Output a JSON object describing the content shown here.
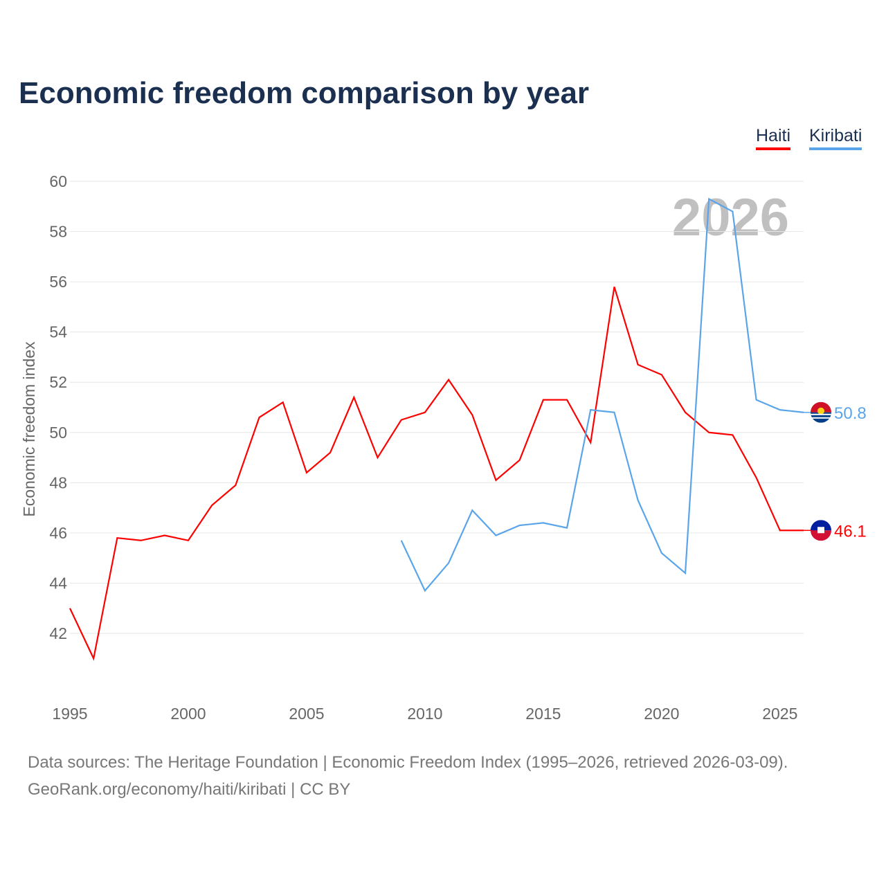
{
  "title": "Economic freedom comparison by year",
  "legend": [
    {
      "label": "Haiti",
      "color": "#ff0000"
    },
    {
      "label": "Kiribati",
      "color": "#5aa5ea"
    }
  ],
  "year_watermark": "2026",
  "footer": {
    "line1": "Data sources: The Heritage Foundation | Economic Freedom Index (1995–2026, retrieved 2026-03-09).",
    "line2": "GeoRank.org/economy/haiti/kiribati | CC BY"
  },
  "chart_data": {
    "type": "line",
    "title": "Economic freedom comparison by year",
    "xlabel": "",
    "ylabel": "Economic freedom index",
    "xlim": [
      1995,
      2026
    ],
    "ylim": [
      42,
      60
    ],
    "xticks": [
      1995,
      2000,
      2005,
      2010,
      2015,
      2020,
      2025
    ],
    "yticks": [
      42,
      44,
      46,
      48,
      50,
      52,
      54,
      56,
      58,
      60
    ],
    "grid": true,
    "legend_position": "top-right",
    "series": [
      {
        "name": "Haiti",
        "color": "#ff0000",
        "end_label": "46.1",
        "x": [
          1995,
          1996,
          1997,
          1998,
          1999,
          2000,
          2001,
          2002,
          2003,
          2004,
          2005,
          2006,
          2007,
          2008,
          2009,
          2010,
          2011,
          2012,
          2013,
          2014,
          2015,
          2016,
          2017,
          2018,
          2019,
          2020,
          2021,
          2022,
          2023,
          2024,
          2025,
          2026
        ],
        "y": [
          43.0,
          41.0,
          45.8,
          45.7,
          45.9,
          45.7,
          47.1,
          47.9,
          50.6,
          51.2,
          48.4,
          49.2,
          51.4,
          49.0,
          50.5,
          50.8,
          52.1,
          50.7,
          48.1,
          48.9,
          51.3,
          51.3,
          49.6,
          55.8,
          52.7,
          52.3,
          50.8,
          50.0,
          49.9,
          48.2,
          46.1,
          46.1
        ]
      },
      {
        "name": "Kiribati",
        "color": "#5aa5ea",
        "end_label": "50.8",
        "x": [
          2009,
          2010,
          2011,
          2012,
          2013,
          2014,
          2015,
          2016,
          2017,
          2018,
          2019,
          2020,
          2021,
          2022,
          2023,
          2024,
          2025,
          2026
        ],
        "y": [
          45.7,
          43.7,
          44.8,
          46.9,
          45.9,
          46.3,
          46.4,
          46.2,
          50.9,
          50.8,
          47.3,
          45.2,
          44.4,
          59.3,
          58.8,
          51.3,
          50.9,
          50.8
        ]
      }
    ]
  }
}
